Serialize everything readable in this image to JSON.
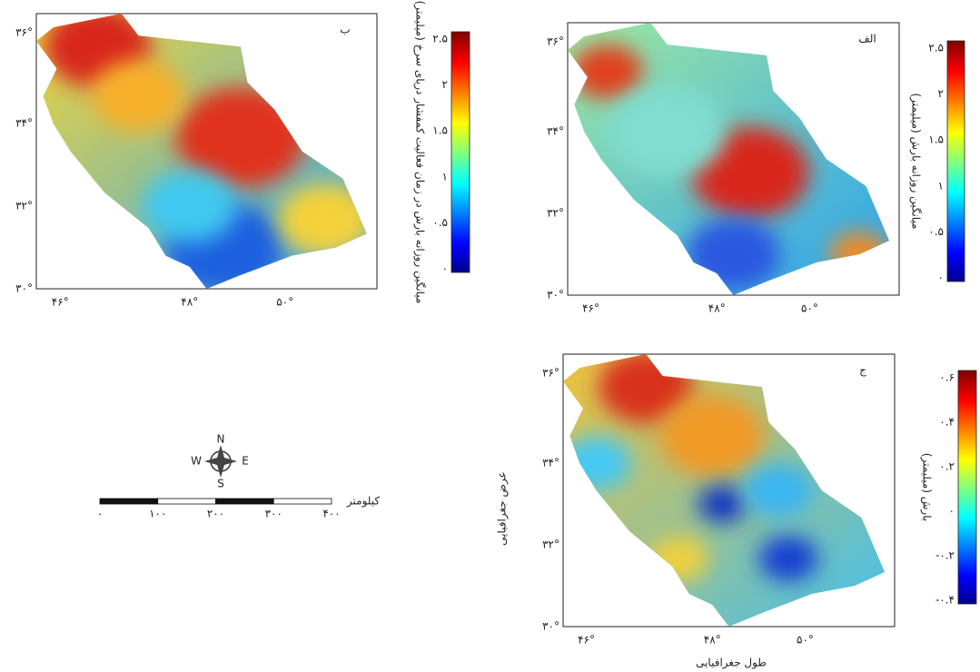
{
  "panels": [
    {
      "label": "ب",
      "colorbar": {
        "title": "میانگین روزانه بارش در زمان فعالیت کمفشار دریای سرخ (میلیمتر)",
        "ticks": [
          "۲.۵",
          "۲",
          "۱.۵",
          "۱",
          "۰.۵",
          "۰"
        ]
      }
    },
    {
      "label": "الف",
      "colorbar": {
        "title": "میانگین روزانه بارش (میلیمتر)",
        "ticks": [
          "۲.۵",
          "۲",
          "۱.۵",
          "۱",
          "۰.۵",
          "۰"
        ]
      }
    },
    {
      "label": "ج",
      "colorbar": {
        "title": "بارش (میلیمتر)",
        "ticks": [
          "۰.۶",
          "۰.۴",
          "۰.۲",
          "۰",
          "-۰.۲",
          "-۰.۴"
        ]
      }
    }
  ],
  "lat_labels": [
    "۳۶°",
    "۳۴°",
    "۳۲°",
    "۳۰°"
  ],
  "lon_labels": [
    "۴۶°",
    "۴۸°",
    "۵۰°"
  ],
  "axis_titles": {
    "latitude": "عرض جغرافیایی",
    "longitude": "طول جغرافیایی"
  },
  "compass": {
    "n": "N",
    "e": "E",
    "s": "S",
    "w": "W"
  },
  "scale_bar": {
    "unit": "کیلومتر",
    "labels": [
      "۰",
      "۱۰۰",
      "۲۰۰",
      "۳۰۰",
      "۴۰۰"
    ]
  }
}
